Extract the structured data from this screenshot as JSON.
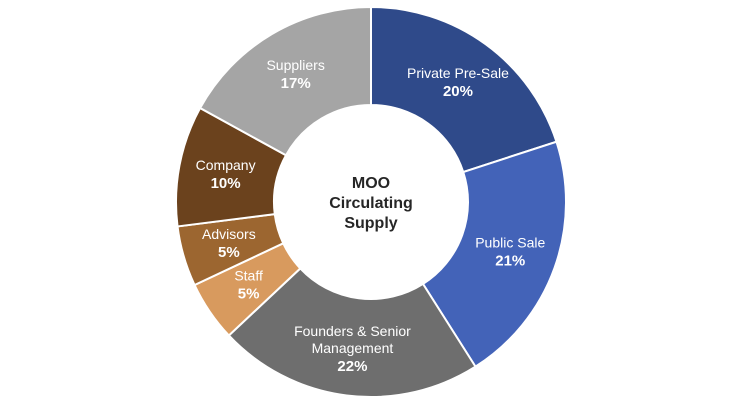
{
  "chart_data": {
    "type": "pie",
    "title": [
      "MOO",
      "Circulating",
      "Supply"
    ],
    "unit": "%",
    "segments": [
      {
        "label": [
          "Private Pre-Sale"
        ],
        "value": 20,
        "pct_text": "20%",
        "color": "#2f4a8a"
      },
      {
        "label": [
          "Public Sale"
        ],
        "value": 21,
        "pct_text": "21%",
        "color": "#4363b8"
      },
      {
        "label": [
          "Founders & Senior",
          "Management"
        ],
        "value": 22,
        "pct_text": "22%",
        "color": "#6e6e6e"
      },
      {
        "label": [
          "Staff"
        ],
        "value": 5,
        "pct_text": "5%",
        "color": "#d89a5e"
      },
      {
        "label": [
          "Advisors"
        ],
        "value": 5,
        "pct_text": "5%",
        "color": "#9c6630"
      },
      {
        "label": [
          "Company"
        ],
        "value": 10,
        "pct_text": "10%",
        "color": "#6b421d"
      },
      {
        "label": [
          "Suppliers"
        ],
        "value": 17,
        "pct_text": "17%",
        "color": "#a5a5a5"
      }
    ]
  }
}
